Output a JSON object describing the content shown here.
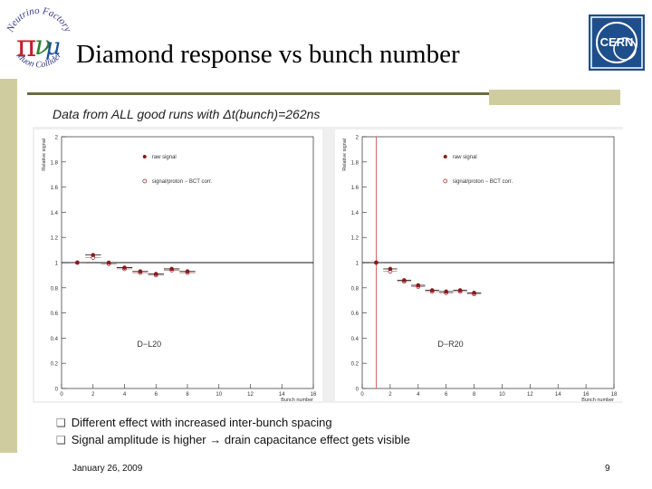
{
  "slide": {
    "title": "Diamond response vs bunch number",
    "subtitle": "Data from ALL good runs with Δt(bunch)=262ns",
    "bullets": [
      "Different effect with increased inter-bunch spacing",
      "Signal amplitude is higher → drain capacitance effect gets visible"
    ],
    "bullet_icon": "checkbox-bullet-icon",
    "footer_date": "January 26, 2009",
    "page_number": "9"
  },
  "logos": {
    "left": {
      "name": "neutrino-factory-muon-collider-logo",
      "words": [
        "Neutrino Factory",
        "Muon Collider"
      ]
    },
    "right": {
      "name": "cern-logo",
      "text": "CERN"
    }
  },
  "colors": {
    "left_bar": "#cfcda0",
    "rule": "#6b6b40",
    "marker": "#8b1a1a",
    "cern_blue": "#1f4e8c"
  },
  "chart_data": [
    {
      "type": "scatter",
      "ylabel": "Relative signal",
      "xlabel": "Bunch number",
      "xlim": [
        0,
        16
      ],
      "ylim": [
        0,
        2
      ],
      "xticks": [
        "0",
        "2",
        "4",
        "6",
        "8",
        "10",
        "12",
        "14",
        "16"
      ],
      "yticks": [
        "0",
        "0.2",
        "0.4",
        "0.6",
        "0.8",
        "1",
        "1.2",
        "1.4",
        "1.6",
        "1.8",
        "2"
      ],
      "reference_line": 1,
      "legend": [
        "raw signal",
        "signal/proton − BCT corr."
      ],
      "legend_position": "top-right",
      "annotation": "D−L20",
      "series": [
        {
          "name": "raw signal",
          "x": [
            1,
            2,
            3,
            4,
            5,
            6,
            7,
            8
          ],
          "y": [
            1.0,
            1.06,
            1.0,
            0.96,
            0.93,
            0.91,
            0.95,
            0.93
          ]
        },
        {
          "name": "signal/proton − BCT corr.",
          "x": [
            1,
            2,
            3,
            4,
            5,
            6,
            7,
            8
          ],
          "y": [
            1.0,
            1.04,
            0.99,
            0.95,
            0.92,
            0.9,
            0.94,
            0.92
          ]
        }
      ]
    },
    {
      "type": "scatter",
      "ylabel": "Relative signal",
      "xlabel": "Bunch number",
      "xlim": [
        0,
        18
      ],
      "ylim": [
        0,
        2
      ],
      "xticks": [
        "0",
        "2",
        "4",
        "6",
        "8",
        "10",
        "12",
        "14",
        "16",
        "18"
      ],
      "yticks": [
        "0",
        "0.2",
        "0.4",
        "0.6",
        "0.8",
        "1",
        "1.2",
        "1.4",
        "1.6",
        "1.8",
        "2"
      ],
      "reference_line": 1,
      "vertical_line": 1,
      "legend": [
        "raw signal",
        "signal/proton − BCT corr."
      ],
      "legend_position": "top-right",
      "annotation": "D−R20",
      "series": [
        {
          "name": "raw signal",
          "x": [
            1,
            2,
            3,
            4,
            5,
            6,
            7,
            8
          ],
          "y": [
            1.0,
            0.95,
            0.86,
            0.82,
            0.78,
            0.77,
            0.78,
            0.76
          ]
        },
        {
          "name": "signal/proton − BCT corr.",
          "x": [
            1,
            2,
            3,
            4,
            5,
            6,
            7,
            8
          ],
          "y": [
            1.0,
            0.93,
            0.85,
            0.81,
            0.77,
            0.76,
            0.77,
            0.75
          ]
        }
      ]
    }
  ]
}
